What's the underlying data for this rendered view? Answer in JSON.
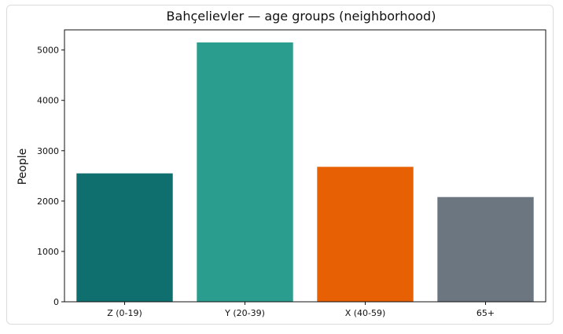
{
  "chart_data": {
    "type": "bar",
    "title": "Bahçelievler — age groups (neighborhood)",
    "xlabel": "",
    "ylabel": "People",
    "categories": [
      "Z (0-19)",
      "Y (20-39)",
      "X (40-59)",
      "65+"
    ],
    "values": [
      2550,
      5150,
      2680,
      2080
    ],
    "colors": [
      "#0f6e6e",
      "#2a9d8f",
      "#e76003",
      "#6b7680"
    ],
    "ylim": [
      0,
      5400
    ],
    "yticks": [
      0,
      1000,
      2000,
      3000,
      4000,
      5000
    ],
    "grid": false,
    "legend": "none"
  }
}
